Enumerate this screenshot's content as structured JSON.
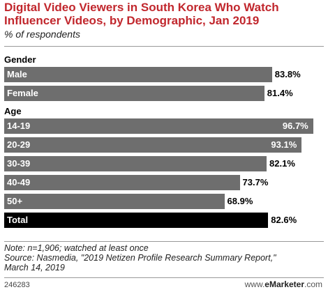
{
  "chart_data": {
    "type": "bar",
    "orientation": "horizontal",
    "title": "Digital Video Viewers in South Korea Who Watch\nInfluencer Videos, by Demographic, Jan 2019",
    "subtitle": "% of respondents",
    "value_suffix": "%",
    "xlim": [
      0,
      100
    ],
    "groups": [
      {
        "name": "Gender",
        "categories": [
          "Male",
          "Female"
        ],
        "values": [
          83.8,
          81.4
        ]
      },
      {
        "name": "Age",
        "categories": [
          "14-19",
          "20-29",
          "30-39",
          "40-49",
          "50+"
        ],
        "values": [
          96.7,
          93.1,
          82.1,
          73.7,
          68.9
        ]
      }
    ],
    "total": {
      "category": "Total",
      "value": 82.6
    },
    "colors": {
      "bar": "#6e6e6e",
      "total_bar": "#000000",
      "title": "#c1272d"
    }
  },
  "footer": {
    "note": "Note: n=1,906; watched at least once",
    "source": "Source: Nasmedia, \"2019 Netizen Profile Research Summary Report,\"\nMarch 14, 2019",
    "chart_id": "246283",
    "logo_prefix": "www.",
    "logo_brand": "eMarketer",
    "logo_suffix": ".com"
  }
}
